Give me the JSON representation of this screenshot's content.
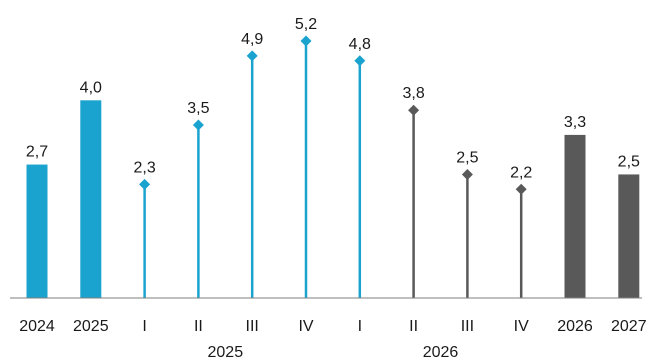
{
  "chart_data": {
    "type": "bar",
    "categories": [
      "2024",
      "2025",
      "I",
      "II",
      "III",
      "IV",
      "I",
      "II",
      "III",
      "IV",
      "2026",
      "2027"
    ],
    "group_labels": [
      {
        "label": "2025",
        "categories": [
          2,
          3,
          4,
          5
        ]
      },
      {
        "label": "2026",
        "categories": [
          6,
          7,
          8,
          9
        ]
      }
    ],
    "values": [
      2.7,
      4.0,
      2.3,
      3.5,
      4.9,
      5.2,
      4.8,
      3.8,
      2.5,
      2.2,
      3.3,
      2.5
    ],
    "value_labels": [
      "2,7",
      "4,0",
      "2,3",
      "3,5",
      "4,9",
      "5,2",
      "4,8",
      "3,8",
      "2,5",
      "2,2",
      "3,3",
      "2,5"
    ],
    "marks": [
      "bar",
      "bar",
      "lollipop",
      "lollipop",
      "lollipop",
      "lollipop",
      "lollipop",
      "lollipop",
      "lollipop",
      "lollipop",
      "bar",
      "bar"
    ],
    "colors": [
      "#1ba3cf",
      "#1ba3cf",
      "#1ba3cf",
      "#1ba3cf",
      "#1ba3cf",
      "#1ba3cf",
      "#1ba3cf",
      "#595959",
      "#595959",
      "#595959",
      "#595959",
      "#595959"
    ],
    "ylim": [
      0,
      5.2
    ],
    "grid": false,
    "title": "",
    "xlabel": "",
    "ylabel": ""
  }
}
